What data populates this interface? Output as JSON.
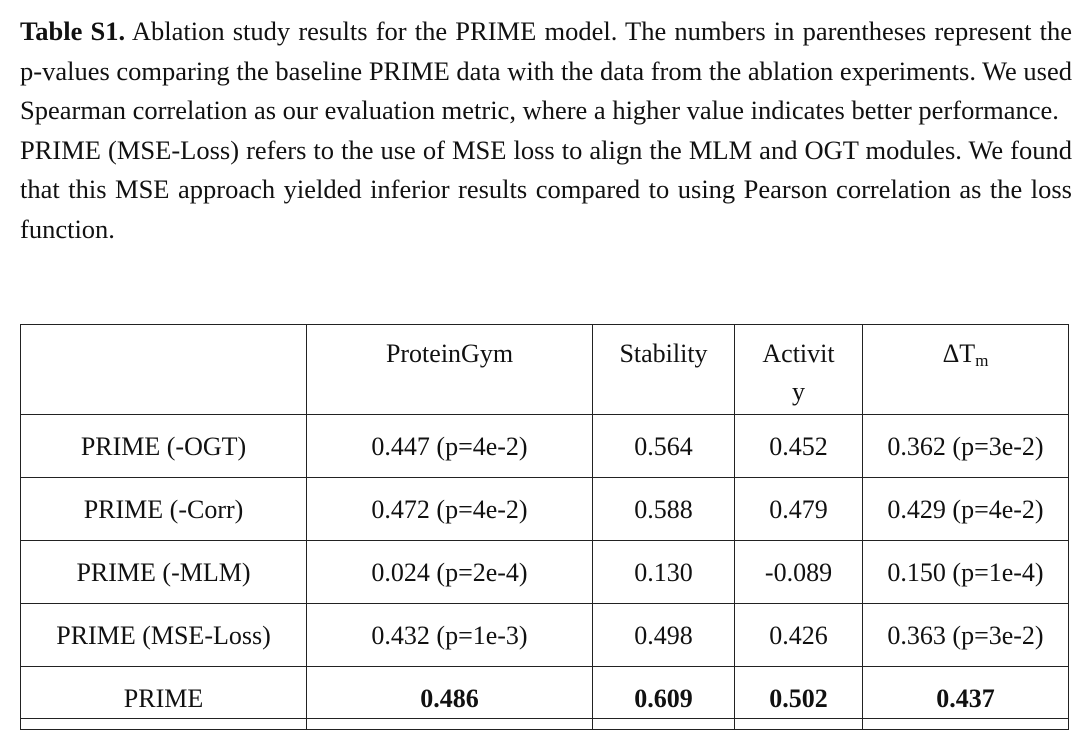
{
  "caption": {
    "label": "Table S1.",
    "text_1": " Ablation study results for the PRIME model. The numbers in parentheses represent the p-values comparing the baseline PRIME data with the data from the ablation experiments. We used Spearman correlation as our evaluation metric, where a higher value indicates better performance.",
    "text_2": "PRIME (MSE-Loss) refers to the use of MSE loss to align the MLM and OGT modules. We found that this MSE approach yielded inferior results compared to using Pearson correlation as the loss function."
  },
  "table": {
    "headers": {
      "model": "",
      "proteingym": "ProteinGym",
      "stability": "Stability",
      "activity_line1": "Activit",
      "activity_line2": "y",
      "dtm_main": "ΔT",
      "dtm_sub": "m"
    },
    "rows": [
      {
        "model": "PRIME (-OGT)",
        "proteingym": "0.447 (p=4e-2)",
        "stability": "0.564",
        "activity": "0.452",
        "dtm": "0.362 (p=3e-2)"
      },
      {
        "model": "PRIME (-Corr)",
        "proteingym": "0.472 (p=4e-2)",
        "stability": "0.588",
        "activity": "0.479",
        "dtm": "0.429 (p=4e-2)"
      },
      {
        "model": "PRIME (-MLM)",
        "proteingym": "0.024 (p=2e-4)",
        "stability": "0.130",
        "activity": "-0.089",
        "dtm": "0.150 (p=1e-4)"
      },
      {
        "model": "PRIME (MSE-Loss)",
        "proteingym": "0.432 (p=1e-3)",
        "stability": "0.498",
        "activity": "0.426",
        "dtm": "0.363 (p=3e-2)"
      },
      {
        "model": "PRIME",
        "proteingym": "0.486",
        "stability": "0.609",
        "activity": "0.502",
        "dtm": "0.437"
      }
    ]
  }
}
